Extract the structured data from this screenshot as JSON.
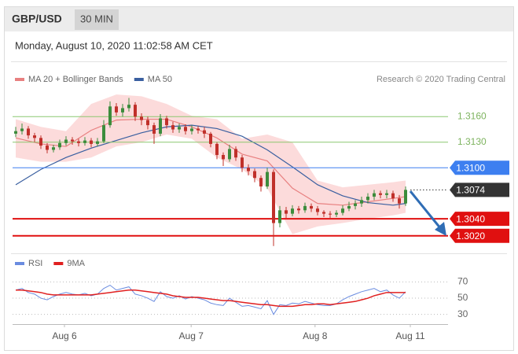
{
  "header": {
    "symbol": "GBP/USD",
    "interval": "30 MIN",
    "timestamp": "Monday, August 10, 2020 11:02:58 AM CET"
  },
  "chart_data": [
    {
      "type": "candlestick",
      "source": "Research © 2020 Trading Central",
      "up_color": "#3c8c3c",
      "down_color": "#c0302a",
      "open": [
        1.314,
        1.3143,
        1.3146,
        1.3138,
        1.3135,
        1.3126,
        1.3121,
        1.3124,
        1.3129,
        1.3133,
        1.3131,
        1.3129,
        1.3132,
        1.3128,
        1.3131,
        1.315,
        1.3172,
        1.3165,
        1.317,
        1.3174,
        1.316,
        1.3156,
        1.315,
        1.314,
        1.3158,
        1.315,
        1.3145,
        1.3148,
        1.3143,
        1.3146,
        1.3144,
        1.314,
        1.3128,
        1.3115,
        1.311,
        1.3122,
        1.3112,
        1.31,
        1.3096,
        1.3088,
        1.3078,
        1.3095,
        1.3035,
        1.305,
        1.3046,
        1.3052,
        1.305,
        1.3055,
        1.3052,
        1.3048,
        1.3046,
        1.3045,
        1.3047,
        1.3052,
        1.3055,
        1.3058,
        1.3062,
        1.3066,
        1.307,
        1.3068,
        1.307,
        1.3064,
        1.3058
      ],
      "high": [
        1.3148,
        1.3152,
        1.3149,
        1.3141,
        1.3138,
        1.3129,
        1.3127,
        1.3133,
        1.3137,
        1.3136,
        1.3134,
        1.3136,
        1.3135,
        1.3135,
        1.3156,
        1.3178,
        1.3176,
        1.3175,
        1.3182,
        1.3177,
        1.3164,
        1.316,
        1.3153,
        1.3163,
        1.3161,
        1.3154,
        1.3152,
        1.3151,
        1.315,
        1.3149,
        1.3148,
        1.3142,
        1.313,
        1.3118,
        1.3127,
        1.3125,
        1.3115,
        1.3104,
        1.3099,
        1.3091,
        1.31,
        1.3098,
        1.3055,
        1.3054,
        1.3056,
        1.3055,
        1.3059,
        1.3058,
        1.3055,
        1.305,
        1.3049,
        1.305,
        1.3056,
        1.306,
        1.3062,
        1.3066,
        1.307,
        1.3074,
        1.3073,
        1.3074,
        1.3073,
        1.3068,
        1.3078
      ],
      "low": [
        1.3136,
        1.3139,
        1.3134,
        1.313,
        1.3122,
        1.3117,
        1.3118,
        1.3121,
        1.3126,
        1.3127,
        1.3125,
        1.3126,
        1.3124,
        1.3125,
        1.3129,
        1.3147,
        1.3161,
        1.316,
        1.3166,
        1.3155,
        1.315,
        1.3145,
        1.3128,
        1.3137,
        1.3146,
        1.3141,
        1.3141,
        1.3139,
        1.3139,
        1.314,
        1.3135,
        1.3124,
        1.311,
        1.3102,
        1.3107,
        1.3108,
        1.3095,
        1.3091,
        1.3083,
        1.3072,
        1.3075,
        1.3008,
        1.303,
        1.3041,
        1.3043,
        1.3046,
        1.3047,
        1.3048,
        1.3044,
        1.3042,
        1.3041,
        1.3042,
        1.3044,
        1.3049,
        1.3051,
        1.3054,
        1.3058,
        1.3062,
        1.3064,
        1.3064,
        1.306,
        1.3052,
        1.3055
      ],
      "close": [
        1.3143,
        1.3146,
        1.3138,
        1.3135,
        1.3126,
        1.3121,
        1.3124,
        1.3129,
        1.3133,
        1.3131,
        1.3129,
        1.3132,
        1.3128,
        1.3131,
        1.315,
        1.3172,
        1.3165,
        1.317,
        1.3174,
        1.316,
        1.3156,
        1.315,
        1.314,
        1.3158,
        1.315,
        1.3145,
        1.3148,
        1.3143,
        1.3146,
        1.3144,
        1.314,
        1.3128,
        1.3115,
        1.311,
        1.3122,
        1.3112,
        1.31,
        1.3096,
        1.3088,
        1.3078,
        1.3095,
        1.3035,
        1.305,
        1.3046,
        1.3052,
        1.305,
        1.3055,
        1.3052,
        1.3048,
        1.3046,
        1.3045,
        1.3047,
        1.3052,
        1.3055,
        1.3058,
        1.3062,
        1.3066,
        1.307,
        1.3068,
        1.307,
        1.3064,
        1.3058,
        1.3074
      ],
      "overlays": [
        {
          "name": "MA 20 + Bollinger Bands",
          "color": "#e88080",
          "band_color": "#fbd5d5",
          "x": [
            0,
            4,
            8,
            12,
            16,
            20,
            24,
            28,
            32,
            36,
            40,
            44,
            48,
            52,
            56,
            60,
            62
          ],
          "values": [
            1.3135,
            1.3128,
            1.3125,
            1.3144,
            1.3156,
            1.3157,
            1.3157,
            1.3148,
            1.3135,
            1.3116,
            1.3108,
            1.3076,
            1.3058,
            1.3056,
            1.306,
            1.3064,
            1.3066
          ],
          "upper": [
            1.3157,
            1.3148,
            1.3143,
            1.3175,
            1.3186,
            1.3184,
            1.3175,
            1.3161,
            1.3157,
            1.3134,
            1.3139,
            1.313,
            1.3085,
            1.3077,
            1.308,
            1.3083,
            1.3085
          ],
          "lower": [
            1.3112,
            1.3107,
            1.3107,
            1.3112,
            1.3125,
            1.313,
            1.3139,
            1.3134,
            1.3112,
            1.3098,
            1.3076,
            1.3022,
            1.3031,
            1.3035,
            1.304,
            1.3044,
            1.3047
          ]
        },
        {
          "name": "MA 50",
          "color": "#3a5fa0",
          "x": [
            0,
            4,
            8,
            12,
            16,
            20,
            24,
            28,
            32,
            36,
            40,
            44,
            48,
            52,
            56,
            60,
            62
          ],
          "values": [
            1.308,
            1.3098,
            1.3112,
            1.3123,
            1.3132,
            1.3141,
            1.3148,
            1.315,
            1.3146,
            1.3137,
            1.3121,
            1.3101,
            1.308,
            1.3067,
            1.3059,
            1.3056,
            1.3058
          ]
        }
      ],
      "levels": [
        {
          "value": 1.316,
          "label": "1.3160",
          "color": "#8cc870",
          "tag": false,
          "dashed": false
        },
        {
          "value": 1.313,
          "label": "1.3130",
          "color": "#8cc870",
          "tag": false,
          "dashed": false
        },
        {
          "value": 1.31,
          "label": "1.3100",
          "color": "#3d7ff0",
          "tag": true,
          "dashed": false
        },
        {
          "value": 1.3074,
          "label": "1.3074",
          "color": "#333333",
          "tag": true,
          "dashed": true
        },
        {
          "value": 1.304,
          "label": "1.3040",
          "color": "#e01010",
          "tag": true,
          "dashed": false
        },
        {
          "value": 1.302,
          "label": "1.3020",
          "color": "#e01010",
          "tag": true,
          "dashed": false
        }
      ],
      "xlim": [
        -0.5,
        68.75
      ],
      "ylim": [
        1.3005,
        1.3188
      ],
      "xticks": [
        {
          "value": 7.75,
          "label": "Aug 6"
        },
        {
          "value": 27.9,
          "label": "Aug 7"
        },
        {
          "value": 47.6,
          "label": "Aug 8"
        },
        {
          "value": 62.75,
          "label": "Aug 11"
        }
      ]
    },
    {
      "type": "line",
      "series": [
        {
          "name": "RSI",
          "color": "#6a8ce0",
          "values": [
            60,
            62,
            57,
            55,
            50,
            48,
            52,
            55,
            57,
            55,
            54,
            56,
            53,
            55,
            62,
            66,
            60,
            62,
            64,
            55,
            53,
            50,
            46,
            58,
            52,
            50,
            53,
            49,
            52,
            50,
            48,
            44,
            42,
            41,
            50,
            45,
            40,
            41,
            39,
            37,
            47,
            30,
            42,
            41,
            44,
            43,
            46,
            44,
            42,
            41,
            41,
            43,
            48,
            52,
            55,
            58,
            60,
            62,
            58,
            60,
            54,
            50,
            58
          ]
        },
        {
          "name": "9MA",
          "color": "#e02020",
          "values": [
            60,
            60,
            59,
            58,
            57,
            55,
            54,
            54,
            54,
            54,
            54,
            54,
            54,
            55,
            56,
            57,
            58,
            59,
            60,
            60,
            59,
            58,
            57,
            56,
            55,
            53,
            52,
            51,
            51,
            51,
            50,
            49,
            48,
            47,
            47,
            46,
            45,
            44,
            43,
            42,
            42,
            41,
            40,
            40,
            40,
            41,
            42,
            42,
            43,
            43,
            42,
            43,
            44,
            45,
            46,
            48,
            50,
            53,
            55,
            57,
            57,
            57,
            57
          ]
        }
      ],
      "xlim": [
        -0.5,
        68.75
      ],
      "ylim": [
        20,
        83
      ],
      "yticks": [
        70,
        50,
        30
      ],
      "grid": true
    }
  ]
}
